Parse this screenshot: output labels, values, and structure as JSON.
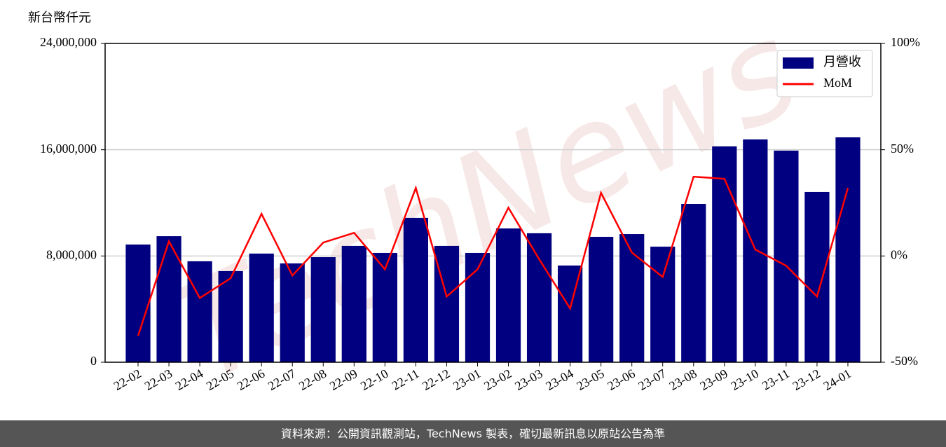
{
  "chart_data": {
    "type": "bar",
    "y_label": "新台幣仟元",
    "watermark": "TechNews",
    "footer": "資料來源：公開資訊觀測站，TechNews 製表，確切最新訊息以原站公告為準",
    "categories": [
      "22-02",
      "22-03",
      "22-04",
      "22-05",
      "22-06",
      "22-07",
      "22-08",
      "22-09",
      "22-10",
      "22-11",
      "22-12",
      "23-01",
      "23-02",
      "23-03",
      "23-04",
      "23-05",
      "23-06",
      "23-07",
      "23-08",
      "23-09",
      "23-10",
      "23-11",
      "23-12",
      "24-01"
    ],
    "series": [
      {
        "name": "月營收",
        "type": "bar",
        "color": "#000080",
        "values": [
          8860000,
          9490000,
          7600000,
          6860000,
          8180000,
          7440000,
          7910000,
          8760000,
          8230000,
          10870000,
          8760000,
          8230000,
          10070000,
          9710000,
          7280000,
          9440000,
          9650000,
          8700000,
          11920000,
          16250000,
          16770000,
          15930000,
          12820000,
          16930000
        ]
      },
      {
        "name": "MoM",
        "type": "line",
        "axis": "y2",
        "color": "#ff0000",
        "values": [
          -37.6,
          6.9,
          -19.8,
          -10.5,
          19.8,
          -9.2,
          6.3,
          10.9,
          -6.3,
          32.0,
          -19.1,
          -6.3,
          22.7,
          -1.6,
          -24.7,
          29.7,
          1.6,
          -9.9,
          37.3,
          36.3,
          3.0,
          -4.6,
          -19.1,
          32.0
        ]
      }
    ],
    "ylim": [
      0,
      24000000
    ],
    "yticks": [
      0,
      {
        "value": 8000000,
        "label": "8,000,000"
      },
      {
        "value": 16000000,
        "label": "16,000,000"
      },
      {
        "value": 24000000,
        "label": "24,000,000"
      }
    ],
    "y2lim": [
      -50,
      100
    ],
    "y2ticks": [
      {
        "value": -50,
        "label": "-50%"
      },
      {
        "value": 0,
        "label": "0%"
      },
      {
        "value": 50,
        "label": "50%"
      },
      {
        "value": 100,
        "label": "100%"
      }
    ],
    "grid": true,
    "legend": "upper right"
  }
}
